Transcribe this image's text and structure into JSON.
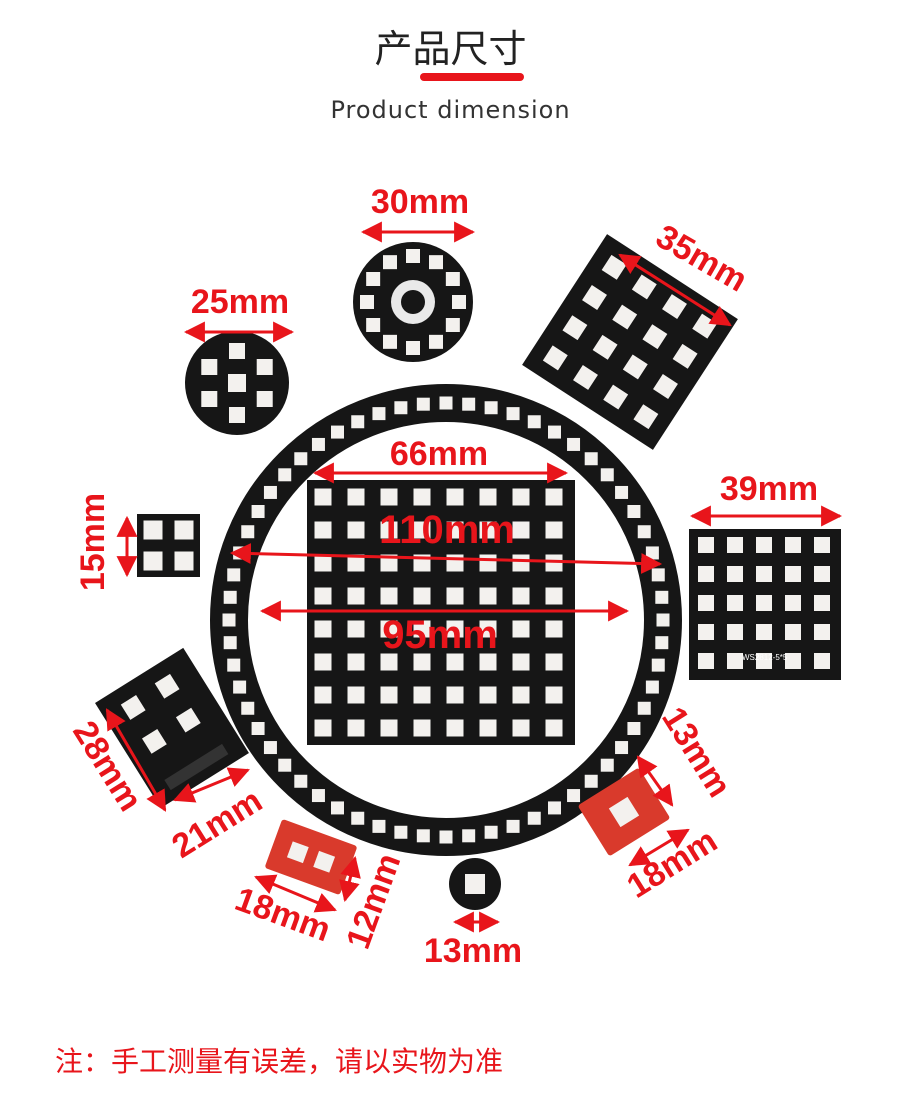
{
  "header": {
    "title_cn": "产品尺寸",
    "title_en": "Product dimension"
  },
  "products": [
    {
      "name": "ring-12",
      "dimension": "30mm"
    },
    {
      "name": "matrix-4x4",
      "dimension": "35mm"
    },
    {
      "name": "round-7",
      "dimension": "25mm"
    },
    {
      "name": "ring-60-outer",
      "dimension": "110mm"
    },
    {
      "name": "ring-60-inner",
      "dimension": "95mm"
    },
    {
      "name": "matrix-8x8",
      "dimension": "66mm"
    },
    {
      "name": "matrix-5x5",
      "dimension": "39mm"
    },
    {
      "name": "square-2x2",
      "dimension": "15mm"
    },
    {
      "name": "board-4led-height",
      "dimension": "28mm"
    },
    {
      "name": "board-4led-width",
      "dimension": "21mm"
    },
    {
      "name": "red-board-2led-width",
      "dimension": "18mm"
    },
    {
      "name": "red-board-2led-height",
      "dimension": "12mm"
    },
    {
      "name": "round-1",
      "dimension": "13mm"
    },
    {
      "name": "red-board-1led-width",
      "dimension": "13mm"
    },
    {
      "name": "red-board-1led-height",
      "dimension": "18mm"
    }
  ],
  "silkscreen": {
    "matrix_5x5": "WS2812-5*5"
  },
  "footer": {
    "note": "注：手工测量有误差，请以实物为准"
  },
  "colors": {
    "accent": "#e8151b",
    "pcb_black": "#161616",
    "led_white": "#f3f1ee",
    "pcb_red": "#d93a2c"
  }
}
